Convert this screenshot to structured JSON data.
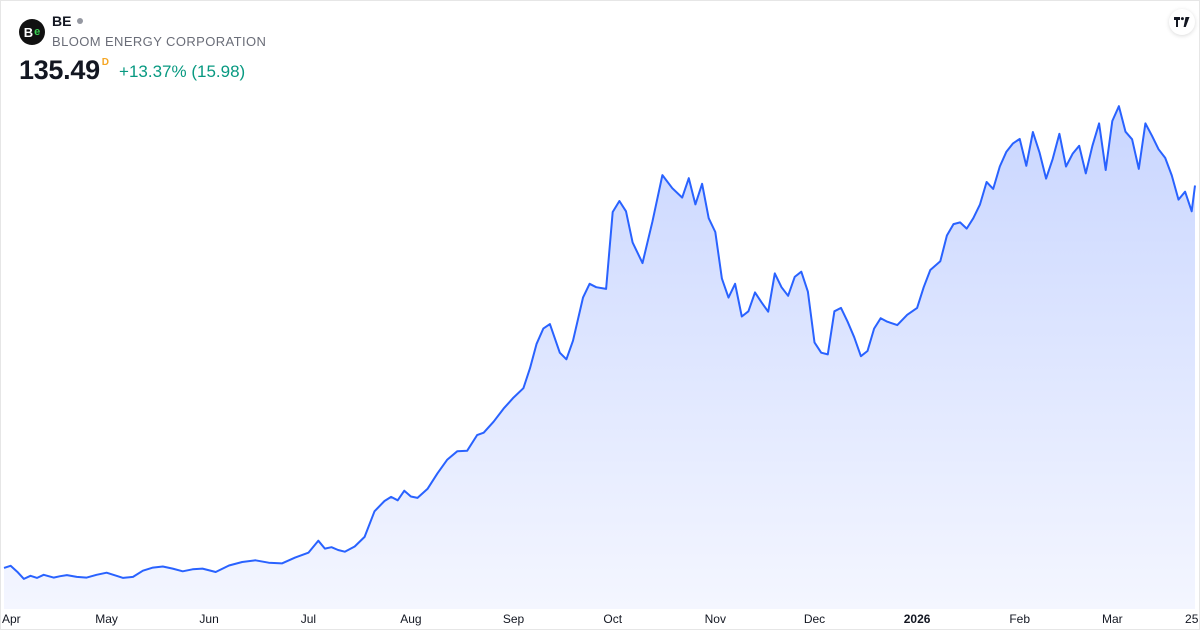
{
  "header": {
    "symbol": "BE",
    "company": "BLOOM ENERGY CORPORATION",
    "price": "135.49",
    "interval": "D",
    "change": "+13.37% (15.98)",
    "logo_text": "B",
    "logo_icon": "bloom-energy-logo-icon"
  },
  "brand": {
    "icon": "tradingview-logo-icon"
  },
  "colors": {
    "line": "#2962ff",
    "fill_top": "#c9d6ff",
    "fill_bottom": "#f4f6ff",
    "change_positive": "#089981",
    "interval_badge": "#f5a623"
  },
  "chart_data": {
    "type": "area",
    "title": "",
    "xlabel": "",
    "ylabel": "",
    "ylim": [
      15,
      160
    ],
    "grid": false,
    "legend": "none",
    "x_ticks": [
      {
        "label": "Apr",
        "x": "2025-04-01",
        "bold": false
      },
      {
        "label": "May",
        "x": "2025-05-01",
        "bold": false
      },
      {
        "label": "Jun",
        "x": "2025-06-01",
        "bold": false
      },
      {
        "label": "Jul",
        "x": "2025-07-01",
        "bold": false
      },
      {
        "label": "Aug",
        "x": "2025-08-01",
        "bold": false
      },
      {
        "label": "Sep",
        "x": "2025-09-01",
        "bold": false
      },
      {
        "label": "Oct",
        "x": "2025-10-01",
        "bold": false
      },
      {
        "label": "Nov",
        "x": "2025-11-01",
        "bold": false
      },
      {
        "label": "Dec",
        "x": "2025-12-01",
        "bold": false
      },
      {
        "label": "2026",
        "x": "2026-01-01",
        "bold": true
      },
      {
        "label": "Feb",
        "x": "2026-02-01",
        "bold": false
      },
      {
        "label": "Mar",
        "x": "2026-03-01",
        "bold": false
      },
      {
        "label": "25",
        "x": "2026-03-25",
        "bold": false
      }
    ],
    "series": [
      {
        "x": [
          "2025-03-31",
          "2025-04-02",
          "2025-04-04",
          "2025-04-06",
          "2025-04-08",
          "2025-04-10",
          "2025-04-12",
          "2025-04-15",
          "2025-04-17",
          "2025-04-19",
          "2025-04-22",
          "2025-04-25",
          "2025-04-28",
          "2025-05-01",
          "2025-05-04",
          "2025-05-06",
          "2025-05-09",
          "2025-05-12",
          "2025-05-15",
          "2025-05-18",
          "2025-05-21",
          "2025-05-24",
          "2025-05-27",
          "2025-05-30",
          "2025-06-03",
          "2025-06-07",
          "2025-06-11",
          "2025-06-15",
          "2025-06-19",
          "2025-06-23",
          "2025-06-27",
          "2025-07-01",
          "2025-07-04",
          "2025-07-06",
          "2025-07-08",
          "2025-07-10",
          "2025-07-12",
          "2025-07-15",
          "2025-07-18",
          "2025-07-21",
          "2025-07-24",
          "2025-07-26",
          "2025-07-28",
          "2025-07-30",
          "2025-08-01",
          "2025-08-03",
          "2025-08-06",
          "2025-08-09",
          "2025-08-12",
          "2025-08-15",
          "2025-08-18",
          "2025-08-21",
          "2025-08-23",
          "2025-08-26",
          "2025-08-29",
          "2025-09-01",
          "2025-09-04",
          "2025-09-06",
          "2025-09-08",
          "2025-09-10",
          "2025-09-12",
          "2025-09-15",
          "2025-09-17",
          "2025-09-19",
          "2025-09-22",
          "2025-09-24",
          "2025-09-26",
          "2025-09-29",
          "2025-10-01",
          "2025-10-03",
          "2025-10-05",
          "2025-10-07",
          "2025-10-10",
          "2025-10-13",
          "2025-10-16",
          "2025-10-19",
          "2025-10-22",
          "2025-10-24",
          "2025-10-26",
          "2025-10-28",
          "2025-10-30",
          "2025-11-01",
          "2025-11-03",
          "2025-11-05",
          "2025-11-07",
          "2025-11-09",
          "2025-11-11",
          "2025-11-13",
          "2025-11-15",
          "2025-11-17",
          "2025-11-19",
          "2025-11-21",
          "2025-11-23",
          "2025-11-25",
          "2025-11-27",
          "2025-11-29",
          "2025-12-01",
          "2025-12-03",
          "2025-12-05",
          "2025-12-07",
          "2025-12-09",
          "2025-12-11",
          "2025-12-13",
          "2025-12-15",
          "2025-12-17",
          "2025-12-19",
          "2025-12-21",
          "2025-12-23",
          "2025-12-26",
          "2025-12-29",
          "2026-01-01",
          "2026-01-03",
          "2026-01-05",
          "2026-01-08",
          "2026-01-10",
          "2026-01-12",
          "2026-01-14",
          "2026-01-16",
          "2026-01-18",
          "2026-01-20",
          "2026-01-22",
          "2026-01-24",
          "2026-01-26",
          "2026-01-28",
          "2026-01-30",
          "2026-02-01",
          "2026-02-03",
          "2026-02-05",
          "2026-02-07",
          "2026-02-09",
          "2026-02-11",
          "2026-02-13",
          "2026-02-15",
          "2026-02-17",
          "2026-02-19",
          "2026-02-21",
          "2026-02-23",
          "2026-02-25",
          "2026-02-27",
          "2026-03-01",
          "2026-03-03",
          "2026-03-05",
          "2026-03-07",
          "2026-03-09",
          "2026-03-11",
          "2026-03-13",
          "2026-03-15",
          "2026-03-17",
          "2026-03-19",
          "2026-03-21",
          "2026-03-23",
          "2026-03-25",
          "2026-03-26"
        ],
        "values": [
          24.6,
          25.2,
          23.5,
          21.4,
          22.3,
          21.7,
          22.6,
          21.8,
          22.2,
          22.5,
          22.0,
          21.8,
          22.6,
          23.2,
          22.3,
          21.7,
          22.0,
          23.8,
          24.7,
          25.0,
          24.4,
          23.6,
          24.2,
          24.4,
          23.4,
          25.3,
          26.3,
          26.8,
          26.1,
          25.9,
          27.6,
          29.0,
          32.5,
          30.2,
          30.6,
          29.8,
          29.3,
          30.8,
          33.6,
          41.0,
          44.0,
          45.2,
          44.2,
          47.0,
          45.3,
          44.9,
          47.5,
          52.0,
          56.0,
          58.4,
          58.6,
          63.1,
          63.8,
          67.0,
          70.8,
          74.0,
          76.7,
          82.5,
          89.6,
          94.0,
          95.3,
          87.0,
          85.1,
          90.5,
          103.0,
          107.0,
          106.0,
          105.5,
          127.8,
          131.0,
          128.0,
          119.0,
          113.0,
          125.0,
          138.5,
          134.7,
          132.0,
          137.6,
          130.0,
          136.0,
          126.0,
          122.0,
          108.5,
          103.0,
          107.0,
          97.5,
          99.0,
          104.5,
          101.6,
          98.9,
          110.0,
          106.0,
          103.5,
          109.0,
          110.5,
          104.7,
          90.0,
          87.0,
          86.5,
          99.0,
          100.0,
          96.0,
          91.5,
          86.0,
          87.5,
          94.0,
          97.0,
          96.0,
          95.0,
          98.0,
          100.0,
          106.0,
          111.0,
          113.5,
          121.0,
          124.3,
          124.8,
          123.0,
          126.0,
          130.0,
          136.5,
          134.5,
          141.0,
          145.3,
          147.7,
          149.0,
          141.2,
          151.0,
          145.1,
          137.5,
          143.2,
          150.5,
          141.0,
          144.7,
          147.0,
          139.0,
          147.0,
          153.5,
          140.0,
          154.2,
          158.5,
          151.1,
          148.9,
          140.3,
          153.5,
          149.9,
          146.0,
          143.5,
          138.4,
          131.4,
          133.7,
          128.0,
          135.5
        ],
        "name": ""
      }
    ]
  }
}
